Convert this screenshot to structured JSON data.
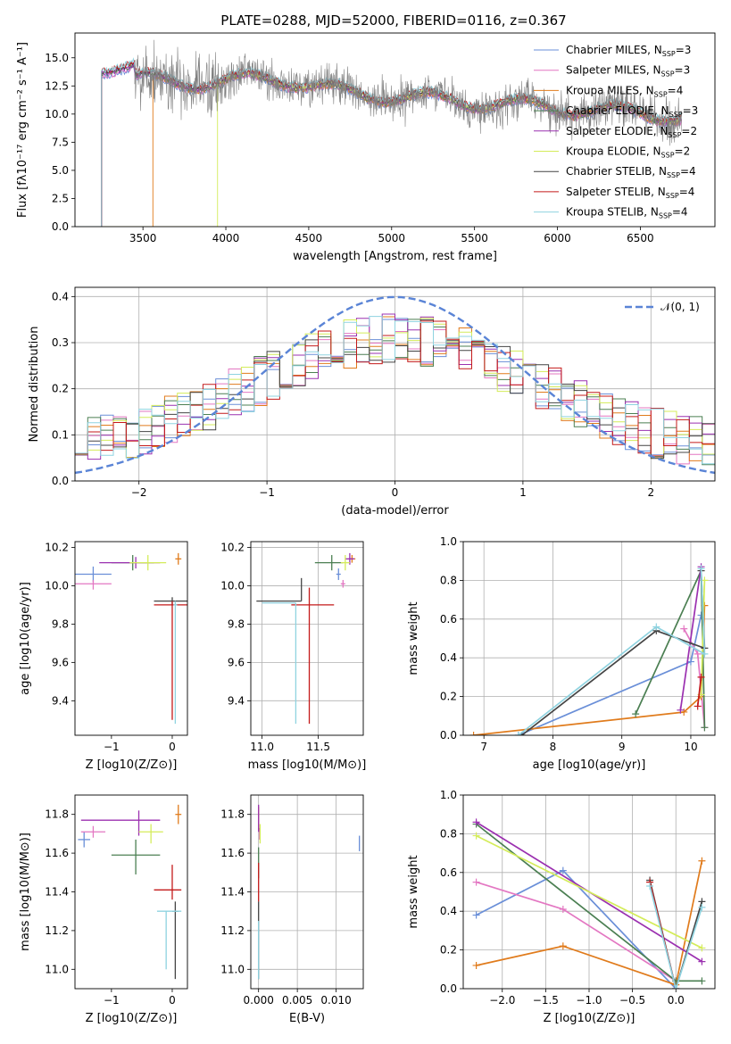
{
  "title": "PLATE=0288, MJD=52000, FIBERID=0116, z=0.367",
  "models": [
    {
      "name": "Chabrier MILES",
      "nssp": "3",
      "color": "#6a8fd8"
    },
    {
      "name": "Salpeter MILES",
      "nssp": "3",
      "color": "#e377c2"
    },
    {
      "name": "Kroupa MILES",
      "nssp": "4",
      "color": "#e07b1c"
    },
    {
      "name": "Chabrier ELODIE",
      "nssp": "3",
      "color": "#4b7f52"
    },
    {
      "name": "Salpeter ELODIE",
      "nssp": "2",
      "color": "#9b30b0"
    },
    {
      "name": "Kroupa ELODIE",
      "nssp": "2",
      "color": "#d4ec5a"
    },
    {
      "name": "Chabrier STELIB",
      "nssp": "4",
      "color": "#444444"
    },
    {
      "name": "Salpeter STELIB",
      "nssp": "4",
      "color": "#c41a1a"
    },
    {
      "name": "Kroupa STELIB",
      "nssp": "4",
      "color": "#8fd3e0"
    }
  ],
  "chart_data": [
    {
      "id": "spectrum",
      "type": "line",
      "xlabel": "wavelength [Angstrom, rest frame]",
      "ylabel": "Flux [fλ10⁻¹⁷ erg cm⁻² s⁻¹ A⁻¹]",
      "xlim": [
        3090,
        6950
      ],
      "ylim": [
        0,
        17.2
      ],
      "xticks": [
        3500,
        4000,
        4500,
        5000,
        5500,
        6000,
        6500
      ],
      "yticks": [
        0.0,
        2.5,
        5.0,
        7.5,
        10.0,
        12.5,
        15.0
      ],
      "legend_position": "upper-right",
      "data_range": [
        3450,
        6750
      ],
      "model_range": [
        3250,
        6750
      ],
      "model_start": [
        3250,
        3250,
        3560,
        3250,
        3250,
        3950,
        3250,
        3250,
        3250
      ]
    },
    {
      "id": "residuals",
      "type": "step",
      "xlabel": "(data-model)/error",
      "ylabel": "Normed distribution",
      "xlim": [
        -2.5,
        2.5
      ],
      "ylim": [
        0,
        0.42
      ],
      "xticks": [
        -2,
        -1,
        0,
        1,
        2
      ],
      "yticks": [
        0.0,
        0.1,
        0.2,
        0.3,
        0.4
      ],
      "reference_curve": "N(0,1)",
      "reference_label": "𝒩(0, 1)",
      "legend_position": "upper-right",
      "bin_width": 0.1
    },
    {
      "id": "age-vs-Z",
      "type": "errorbar",
      "xlabel": "Z [log10(Z/Z⊙)]",
      "ylabel": "age  [log10(age/yr)]",
      "xlim": [
        -1.6,
        0.25
      ],
      "ylim": [
        9.22,
        10.23
      ],
      "xticks": [
        -1,
        0
      ],
      "yticks": [
        9.4,
        9.6,
        9.8,
        10.0,
        10.2
      ],
      "points": [
        {
          "x": -1.3,
          "y": 10.06,
          "xerr": [
            0.3,
            0.3
          ],
          "yerr": [
            0.04,
            0.04
          ]
        },
        {
          "x": -1.3,
          "y": 10.01,
          "xerr": [
            0.3,
            0.3
          ],
          "yerr": [
            0.03,
            0.02
          ]
        },
        {
          "x": 0.1,
          "y": 10.14,
          "xerr": [
            0.05,
            0.05
          ],
          "yerr": [
            0.03,
            0.03
          ]
        },
        {
          "x": -0.65,
          "y": 10.12,
          "xerr": [
            0.35,
            0.35
          ],
          "yerr": [
            0.04,
            0.04
          ]
        },
        {
          "x": -0.6,
          "y": 10.12,
          "xerr": [
            0.6,
            0.4
          ],
          "yerr": [
            0.03,
            0.03
          ]
        },
        {
          "x": -0.4,
          "y": 10.12,
          "xerr": [
            0.3,
            0.3
          ],
          "yerr": [
            0.04,
            0.04
          ]
        },
        {
          "x": 0.0,
          "y": 9.92,
          "xerr": [
            0.3,
            0.3
          ],
          "yerr": [
            0.02,
            0.02
          ]
        },
        {
          "x": 0.0,
          "y": 9.9,
          "xerr": [
            0.3,
            0.3
          ],
          "yerr": [
            0.6,
            0.02
          ]
        },
        {
          "x": 0.05,
          "y": 9.9,
          "xerr": [
            0.03,
            0.03
          ],
          "yerr": [
            0.62,
            0.02
          ]
        }
      ]
    },
    {
      "id": "age-vs-mass",
      "type": "errorbar",
      "xlabel": "mass [log10(M/M⊙)]",
      "ylabel": "",
      "xlim": [
        10.9,
        11.9
      ],
      "ylim": [
        9.22,
        10.23
      ],
      "xticks": [
        11.0,
        11.5
      ],
      "yticks": [
        9.4,
        9.6,
        9.8,
        10.0,
        10.2
      ],
      "points": [
        {
          "x": 11.68,
          "y": 10.06,
          "xerr": [
            0.02,
            0.02
          ],
          "yerr": [
            0.03,
            0.03
          ]
        },
        {
          "x": 11.72,
          "y": 10.01,
          "xerr": [
            0.02,
            0.02
          ],
          "yerr": [
            0.02,
            0.02
          ]
        },
        {
          "x": 11.8,
          "y": 10.14,
          "xerr": [
            0.03,
            0.03
          ],
          "yerr": [
            0.02,
            0.02
          ]
        },
        {
          "x": 11.62,
          "y": 10.12,
          "xerr": [
            0.15,
            0.1
          ],
          "yerr": [
            0.04,
            0.04
          ]
        },
        {
          "x": 11.78,
          "y": 10.14,
          "xerr": [
            0.04,
            0.04
          ],
          "yerr": [
            0.03,
            0.03
          ]
        },
        {
          "x": 11.74,
          "y": 10.12,
          "xerr": [
            0.04,
            0.04
          ],
          "yerr": [
            0.04,
            0.04
          ]
        },
        {
          "x": 11.35,
          "y": 9.92,
          "xerr": [
            0.4,
            0.0
          ],
          "yerr": [
            0.0,
            0.12
          ]
        },
        {
          "x": 11.42,
          "y": 9.9,
          "xerr": [
            0.16,
            0.22
          ],
          "yerr": [
            0.62,
            0.09
          ]
        },
        {
          "x": 11.3,
          "y": 9.91,
          "xerr": [
            0.3,
            0.0
          ],
          "yerr": [
            0.63,
            0.0
          ]
        }
      ]
    },
    {
      "id": "massweight-vs-age",
      "type": "line",
      "xlabel": "age  [log10(age/yr)]",
      "ylabel": "mass weight",
      "xlim": [
        6.7,
        10.35
      ],
      "ylim": [
        0,
        1.0
      ],
      "xticks": [
        7,
        8,
        9,
        10
      ],
      "yticks": [
        0.0,
        0.2,
        0.4,
        0.6,
        0.8,
        1.0
      ],
      "series": [
        {
          "x": [
            7.5,
            10.0,
            10.15
          ],
          "y": [
            0.0,
            0.38,
            0.62
          ]
        },
        {
          "x": [
            9.9,
            10.1,
            10.2
          ],
          "y": [
            0.55,
            0.42,
            0.04
          ]
        },
        {
          "x": [
            6.85,
            9.9,
            10.15,
            10.2
          ],
          "y": [
            0.0,
            0.12,
            0.2,
            0.67
          ]
        },
        {
          "x": [
            9.2,
            10.15,
            10.2
          ],
          "y": [
            0.11,
            0.85,
            0.04
          ]
        },
        {
          "x": [
            9.85,
            10.15
          ],
          "y": [
            0.13,
            0.87
          ]
        },
        {
          "x": [
            10.15,
            10.2
          ],
          "y": [
            0.21,
            0.8
          ]
        },
        {
          "x": [
            7.55,
            9.5,
            10.2,
            10.15
          ],
          "y": [
            0.0,
            0.54,
            0.45,
            0.85
          ]
        },
        {
          "x": [
            10.1,
            10.15
          ],
          "y": [
            0.15,
            0.3
          ]
        },
        {
          "x": [
            7.5,
            9.5,
            10.2,
            10.15
          ],
          "y": [
            0.0,
            0.56,
            0.42,
            0.86
          ]
        }
      ]
    },
    {
      "id": "mass-vs-Z",
      "type": "errorbar",
      "xlabel": "Z [log10(Z/Z⊙)]",
      "ylabel": "mass [log10(M/M⊙)]",
      "xlim": [
        -1.6,
        0.25
      ],
      "ylim": [
        10.9,
        11.9
      ],
      "xticks": [
        -1,
        0
      ],
      "yticks": [
        11.0,
        11.2,
        11.4,
        11.6,
        11.8
      ],
      "points": [
        {
          "x": -1.45,
          "y": 11.67,
          "xerr": [
            0.1,
            0.1
          ],
          "yerr": [
            0.04,
            0.04
          ]
        },
        {
          "x": -1.3,
          "y": 11.71,
          "xerr": [
            0.2,
            0.2
          ],
          "yerr": [
            0.03,
            0.03
          ]
        },
        {
          "x": 0.1,
          "y": 11.8,
          "xerr": [
            0.05,
            0.05
          ],
          "yerr": [
            0.05,
            0.05
          ]
        },
        {
          "x": -0.6,
          "y": 11.59,
          "xerr": [
            0.4,
            0.4
          ],
          "yerr": [
            0.1,
            0.08
          ]
        },
        {
          "x": -0.55,
          "y": 11.77,
          "xerr": [
            0.95,
            0.35
          ],
          "yerr": [
            0.08,
            0.05
          ]
        },
        {
          "x": -0.35,
          "y": 11.71,
          "xerr": [
            0.2,
            0.2
          ],
          "yerr": [
            0.06,
            0.04
          ]
        },
        {
          "x": 0.05,
          "y": 11.3,
          "xerr": [
            0.05,
            0.05
          ],
          "yerr": [
            0.35,
            0.05
          ]
        },
        {
          "x": 0.0,
          "y": 11.41,
          "xerr": [
            0.3,
            0.15
          ],
          "yerr": [
            0.05,
            0.13
          ]
        },
        {
          "x": -0.1,
          "y": 11.3,
          "xerr": [
            0.15,
            0.25
          ],
          "yerr": [
            0.3,
            0.0
          ]
        }
      ]
    },
    {
      "id": "mass-vs-EBV",
      "type": "errorbar",
      "xlabel": "E(B-V)",
      "ylabel": "",
      "xlim": [
        -0.001,
        0.0135
      ],
      "ylim": [
        10.9,
        11.9
      ],
      "xticks": [
        0.0,
        0.005,
        0.01
      ],
      "xticklabels": [
        "0.000",
        "0.005",
        "0.010"
      ],
      "yticks": [
        11.0,
        11.2,
        11.4,
        11.6,
        11.8
      ],
      "points": [
        {
          "x": 0.013,
          "y": 11.65,
          "xerr": [
            0,
            0
          ],
          "yerr": [
            0.04,
            0.04
          ]
        },
        {
          "x": 0.0001,
          "y": 11.7,
          "xerr": [
            0,
            0
          ],
          "yerr": [
            0.03,
            0.03
          ]
        },
        {
          "x": 0.0,
          "y": 11.78,
          "xerr": [
            0,
            0
          ],
          "yerr": [
            0.06,
            0.06
          ]
        },
        {
          "x": 0.0,
          "y": 11.55,
          "xerr": [
            0,
            0
          ],
          "yerr": [
            0.08,
            0.08
          ]
        },
        {
          "x": 0.0,
          "y": 11.78,
          "xerr": [
            0,
            0
          ],
          "yerr": [
            0.07,
            0.07
          ]
        },
        {
          "x": 0.0002,
          "y": 11.7,
          "xerr": [
            0,
            0
          ],
          "yerr": [
            0.05,
            0.05
          ]
        },
        {
          "x": 0.0,
          "y": 11.3,
          "xerr": [
            0,
            0
          ],
          "yerr": [
            0.35,
            0.05
          ]
        },
        {
          "x": 0.0,
          "y": 11.45,
          "xerr": [
            0,
            0
          ],
          "yerr": [
            0.1,
            0.1
          ]
        },
        {
          "x": 0.0,
          "y": 11.1,
          "xerr": [
            0,
            0
          ],
          "yerr": [
            0.15,
            0.15
          ]
        }
      ]
    },
    {
      "id": "massweight-vs-Z",
      "type": "line",
      "xlabel": "Z [log10(Z/Z⊙)]",
      "ylabel": "mass weight",
      "xlim": [
        -2.45,
        0.45
      ],
      "ylim": [
        0,
        1.0
      ],
      "xticks": [
        -2.0,
        -1.5,
        -1.0,
        -0.5,
        0.0
      ],
      "xticklabels": [
        "−2.0",
        "−1.5",
        "−1.0",
        "−0.5",
        "0.0"
      ],
      "yticks": [
        0.0,
        0.2,
        0.4,
        0.6,
        0.8,
        1.0
      ],
      "series": [
        {
          "x": [
            -2.3,
            -1.3,
            0.0
          ],
          "y": [
            0.38,
            0.61,
            0.0
          ]
        },
        {
          "x": [
            -2.3,
            -1.3,
            0.0
          ],
          "y": [
            0.55,
            0.41,
            0.04
          ]
        },
        {
          "x": [
            -2.3,
            -1.3,
            0.0,
            0.3
          ],
          "y": [
            0.12,
            0.22,
            0.02,
            0.66
          ]
        },
        {
          "x": [
            -2.3,
            0.0,
            0.3
          ],
          "y": [
            0.85,
            0.04,
            0.04
          ]
        },
        {
          "x": [
            -2.3,
            0.3
          ],
          "y": [
            0.86,
            0.14
          ]
        },
        {
          "x": [
            -2.3,
            0.3
          ],
          "y": [
            0.79,
            0.21
          ]
        },
        {
          "x": [
            -0.3,
            0.0,
            0.3
          ],
          "y": [
            0.56,
            0.0,
            0.45
          ]
        },
        {
          "x": [
            -0.3,
            0.0
          ],
          "y": [
            0.55,
            0.0
          ]
        },
        {
          "x": [
            -0.3,
            0.0,
            0.3
          ],
          "y": [
            0.53,
            0.0,
            0.42
          ]
        }
      ]
    }
  ]
}
